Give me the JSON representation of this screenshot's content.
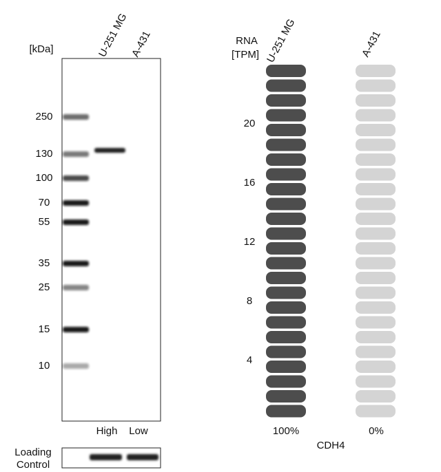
{
  "western_blot": {
    "unit_label": "[kDa]",
    "lanes": [
      "U-251 MG",
      "A-431"
    ],
    "markers": [
      250,
      130,
      100,
      70,
      55,
      35,
      25,
      15,
      10
    ],
    "lane_levels": [
      "High",
      "Low"
    ],
    "loading_control": [
      "Loading",
      "Control"
    ]
  },
  "rna": {
    "axis_label": [
      "RNA",
      "[TPM]"
    ],
    "samples": [
      "U-251 MG",
      "A-431"
    ],
    "ticks": [
      20,
      16,
      12,
      8,
      4
    ],
    "percentages": [
      "100%",
      "0%"
    ],
    "gene": "CDH4"
  }
}
